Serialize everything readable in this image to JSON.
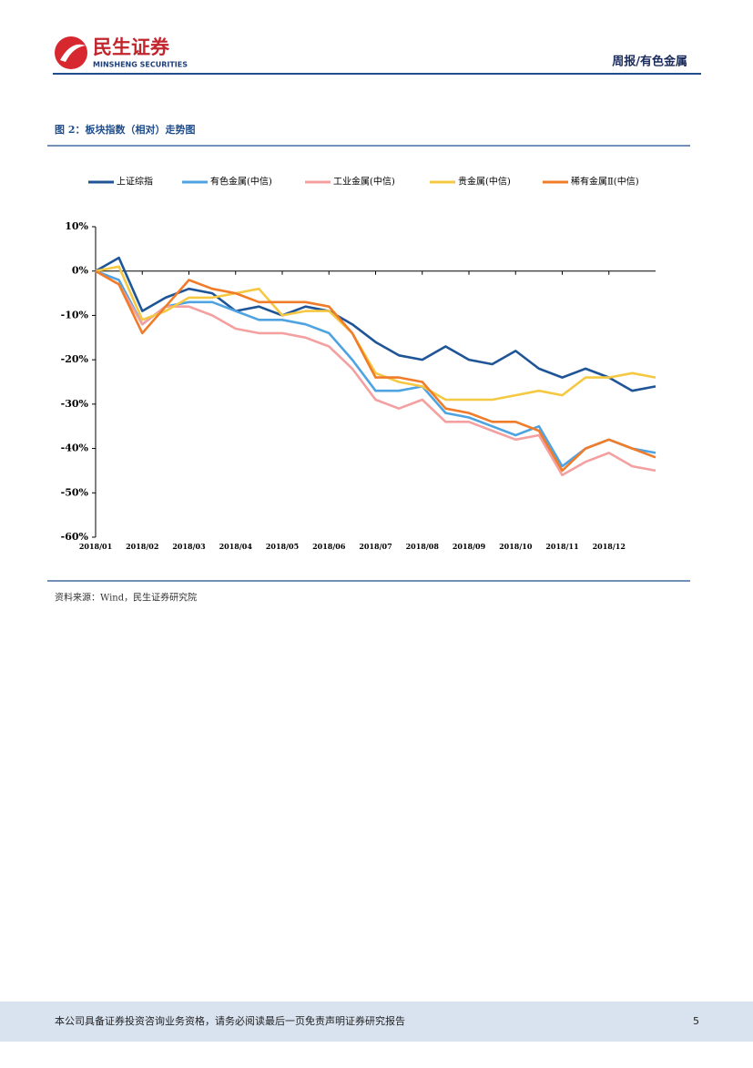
{
  "header": {
    "brand": "民生证券",
    "brand_en": "MINSHENG SECURITIES",
    "section": "周报/有色金属"
  },
  "chart_data": {
    "type": "line",
    "title": "图 2：板块指数（相对）走势图",
    "x": [
      0,
      0.5,
      1,
      1.5,
      2,
      2.5,
      3,
      3.5,
      4,
      4.5,
      5,
      5.5,
      6,
      6.5,
      7,
      7.5,
      8,
      8.5,
      9,
      9.5,
      10,
      10.5,
      11,
      11.5,
      12
    ],
    "xlim": [
      0,
      12
    ],
    "xticks": [
      {
        "value": 0,
        "label": "2018/01"
      },
      {
        "value": 1,
        "label": "2018/02"
      },
      {
        "value": 2,
        "label": "2018/03"
      },
      {
        "value": 3,
        "label": "2018/04"
      },
      {
        "value": 4,
        "label": "2018/05"
      },
      {
        "value": 5,
        "label": "2018/06"
      },
      {
        "value": 6,
        "label": "2018/07"
      },
      {
        "value": 7,
        "label": "2018/08"
      },
      {
        "value": 8,
        "label": "2018/09"
      },
      {
        "value": 9,
        "label": "2018/10"
      },
      {
        "value": 10,
        "label": "2018/11"
      },
      {
        "value": 11,
        "label": "2018/12"
      }
    ],
    "ylim": [
      -60,
      10
    ],
    "yticks": [
      {
        "value": 10,
        "label": "10%"
      },
      {
        "value": 0,
        "label": "0%"
      },
      {
        "value": -10,
        "label": "-10%"
      },
      {
        "value": -20,
        "label": "-20%"
      },
      {
        "value": -30,
        "label": "-30%"
      },
      {
        "value": -40,
        "label": "-40%"
      },
      {
        "value": -50,
        "label": "-50%"
      },
      {
        "value": -60,
        "label": "-60%"
      }
    ],
    "series": [
      {
        "name": "上证综指",
        "color": "#1f5597",
        "values": [
          0,
          3,
          -9,
          -6,
          -4,
          -5,
          -9,
          -8,
          -10,
          -8,
          -9,
          -12,
          -16,
          -19,
          -20,
          -17,
          -20,
          -21,
          -18,
          -22,
          -24,
          -22,
          -24,
          -27,
          -26
        ]
      },
      {
        "name": "有色金属(中信)",
        "color": "#4ea3e0",
        "values": [
          0,
          -2,
          -12,
          -8,
          -7,
          -7,
          -9,
          -11,
          -11,
          -12,
          -14,
          -20,
          -27,
          -27,
          -26,
          -32,
          -33,
          -35,
          -37,
          -35,
          -44,
          -40,
          -38,
          -40,
          -41
        ]
      },
      {
        "name": "工业金属(中信)",
        "color": "#f4a0a0",
        "values": [
          0,
          -3,
          -12,
          -8,
          -8,
          -10,
          -13,
          -14,
          -14,
          -15,
          -17,
          -22,
          -29,
          -31,
          -29,
          -34,
          -34,
          -36,
          -38,
          -37,
          -46,
          -43,
          -41,
          -44,
          -45
        ]
      },
      {
        "name": "贵金属(中信)",
        "color": "#f5c842",
        "values": [
          0,
          1,
          -11,
          -9,
          -6,
          -6,
          -5,
          -4,
          -10,
          -9,
          -9,
          -14,
          -23,
          -25,
          -26,
          -29,
          -29,
          -29,
          -28,
          -27,
          -28,
          -24,
          -24,
          -23,
          -24
        ]
      },
      {
        "name": "稀有金属Ⅱ(中信)",
        "color": "#f07c2a",
        "values": [
          0,
          -3,
          -14,
          -8,
          -2,
          -4,
          -5,
          -7,
          -7,
          -7,
          -8,
          -14,
          -24,
          -24,
          -25,
          -31,
          -32,
          -34,
          -34,
          -36,
          -45,
          -40,
          -38,
          -40,
          -42
        ]
      }
    ]
  },
  "source": "资料来源：Wind，民生证券研究院",
  "footer": {
    "disclaimer": "本公司具备证券投资咨询业务资格，请务必阅读最后一页免责声明证券研究报告",
    "page": "5"
  }
}
